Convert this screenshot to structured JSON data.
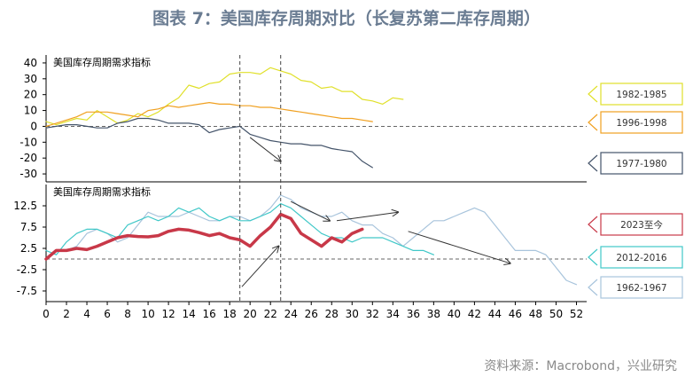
{
  "title": "图表 7：美国库存周期对比（长复苏第二库存周期）",
  "source": "资料来源：Macrobond，兴业研究",
  "chart_data": [
    {
      "type": "line",
      "label": "美国库存周期需求指标",
      "ylim": [
        -35,
        45
      ],
      "yticks": [
        -30,
        -20,
        -10,
        0,
        10,
        20,
        30,
        40
      ],
      "series": [
        {
          "name": "1982-1985",
          "color": "#e0e02a",
          "width": 1.2,
          "x": [
            0,
            1,
            2,
            3,
            4,
            5,
            6,
            7,
            8,
            9,
            10,
            11,
            12,
            13,
            14,
            15,
            16,
            17,
            18,
            19,
            20,
            21,
            22,
            23,
            24,
            25,
            26,
            27,
            28,
            29,
            30,
            31,
            32,
            33,
            34,
            35
          ],
          "y": [
            3,
            1,
            3,
            5,
            4,
            10,
            6,
            2,
            4,
            8,
            6,
            9,
            14,
            18,
            26,
            24,
            27,
            28,
            33,
            34,
            34,
            33,
            37,
            35,
            33,
            29,
            28,
            24,
            25,
            22,
            22,
            17,
            16,
            14,
            18,
            17
          ]
        },
        {
          "name": "1996-1998",
          "color": "#f0a020",
          "width": 1.2,
          "x": [
            0,
            1,
            2,
            3,
            4,
            5,
            6,
            7,
            8,
            9,
            10,
            11,
            12,
            13,
            14,
            15,
            16,
            17,
            18,
            19,
            20,
            21,
            22,
            23,
            24,
            25,
            26,
            27,
            28,
            29,
            30,
            31,
            32
          ],
          "y": [
            0,
            2,
            4,
            6,
            9,
            9,
            9,
            8,
            7,
            6,
            10,
            11,
            13,
            12,
            13,
            14,
            15,
            14,
            14,
            13,
            13,
            12,
            12,
            11,
            10,
            9,
            8,
            7,
            6,
            5,
            5,
            4,
            3
          ]
        },
        {
          "name": "1977-1980",
          "color": "#44546a",
          "width": 1.2,
          "x": [
            0,
            1,
            2,
            3,
            4,
            5,
            6,
            7,
            8,
            9,
            10,
            11,
            12,
            13,
            14,
            15,
            16,
            17,
            18,
            19,
            20,
            21,
            22,
            23,
            24,
            25,
            26,
            27,
            28,
            29,
            30,
            31,
            32
          ],
          "y": [
            -1,
            0,
            1,
            1,
            0,
            -1,
            -1,
            2,
            3,
            5,
            5,
            4,
            2,
            2,
            2,
            1,
            -4,
            -2,
            -1,
            0,
            -5,
            -7,
            -9,
            -10,
            -11,
            -11,
            -12,
            -12,
            -14,
            -15,
            -16,
            -22,
            -26
          ]
        }
      ],
      "legend": [
        {
          "name": "1982-1985",
          "color": "#e0e02a"
        },
        {
          "name": "1996-1998",
          "color": "#f0a020"
        },
        {
          "name": "1977-1980",
          "color": "#44546a"
        }
      ]
    },
    {
      "type": "line",
      "label": "美国库存周期需求指标",
      "ylim": [
        -10,
        17.5
      ],
      "yticks": [
        -7.5,
        -2.5,
        2.5,
        7.5,
        12.5
      ],
      "xlim": [
        0,
        53
      ],
      "xticks": [
        0,
        2,
        4,
        6,
        8,
        10,
        12,
        14,
        16,
        18,
        20,
        22,
        24,
        26,
        28,
        30,
        32,
        34,
        36,
        38,
        40,
        42,
        44,
        46,
        48,
        50,
        52
      ],
      "series": [
        {
          "name": "1962-1967",
          "color": "#a8c4dc",
          "width": 1.2,
          "x": [
            2,
            3,
            4,
            5,
            6,
            7,
            8,
            9,
            10,
            11,
            12,
            13,
            14,
            15,
            16,
            17,
            18,
            19,
            20,
            21,
            22,
            23,
            24,
            25,
            26,
            27,
            28,
            29,
            30,
            31,
            32,
            33,
            34,
            35,
            36,
            37,
            38,
            39,
            40,
            41,
            42,
            43,
            44,
            45,
            46,
            47,
            48,
            49,
            50,
            51,
            52
          ],
          "y": [
            2,
            3,
            6,
            7,
            6,
            4,
            5,
            8,
            11,
            10,
            10,
            10,
            11,
            10,
            9,
            9,
            10,
            10,
            9,
            10,
            12,
            15,
            14,
            12,
            11,
            10,
            10,
            11,
            9,
            8,
            8,
            6,
            5,
            3,
            5,
            7,
            9,
            9,
            10,
            11,
            12,
            11,
            8,
            5,
            2,
            2,
            2,
            1,
            -2,
            -5,
            -6
          ]
        },
        {
          "name": "2012-2016",
          "color": "#40c8c8",
          "width": 1.2,
          "x": [
            0,
            1,
            2,
            3,
            4,
            5,
            6,
            7,
            8,
            9,
            10,
            11,
            12,
            13,
            14,
            15,
            16,
            17,
            18,
            19,
            20,
            21,
            22,
            23,
            24,
            25,
            26,
            27,
            28,
            29,
            30,
            31,
            32,
            33,
            34,
            35,
            36,
            37,
            38
          ],
          "y": [
            2,
            1,
            4,
            6,
            7,
            7,
            6,
            5,
            8,
            9,
            10,
            9,
            10,
            12,
            11,
            12,
            10,
            9,
            10,
            9,
            9,
            10,
            11,
            13,
            12,
            10,
            8,
            6,
            5,
            5,
            4,
            5,
            5,
            5,
            4,
            3,
            2,
            2,
            1
          ]
        },
        {
          "name": "2023至今",
          "color": "#c83848",
          "width": 3.5,
          "x": [
            0,
            1,
            2,
            3,
            4,
            5,
            6,
            7,
            8,
            9,
            10,
            11,
            12,
            13,
            14,
            15,
            16,
            17,
            18,
            19,
            20,
            21,
            22,
            23,
            24,
            25,
            26,
            27,
            28,
            29,
            30,
            31
          ],
          "y": [
            0,
            2,
            2,
            2.5,
            2.2,
            3,
            4,
            5,
            5.5,
            5.3,
            5.2,
            5.5,
            6.5,
            7,
            6.8,
            6.2,
            5.5,
            6,
            5,
            4.5,
            3,
            5.5,
            7.5,
            10.5,
            9.5,
            6,
            4.5,
            3,
            5,
            4,
            6,
            7
          ]
        }
      ],
      "legend": [
        {
          "name": "2023至今",
          "color": "#c83848"
        },
        {
          "name": "2012-2016",
          "color": "#40c8c8"
        },
        {
          "name": "1962-1967",
          "color": "#a8c4dc"
        }
      ]
    }
  ]
}
